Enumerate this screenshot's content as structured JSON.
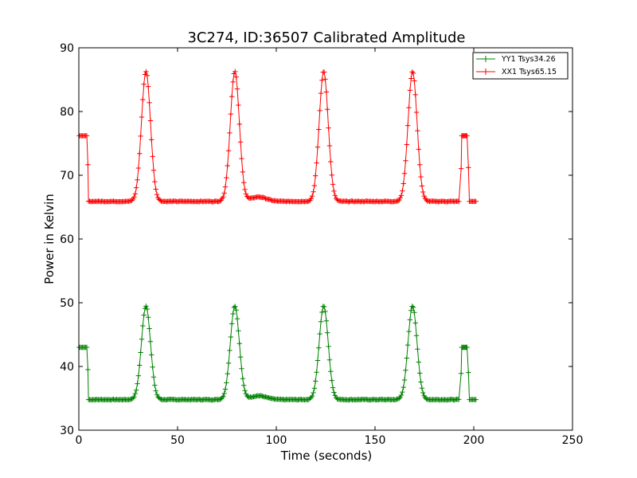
{
  "chart_data": {
    "type": "line",
    "title": "3C274, ID:36507 Calibrated Amplitude",
    "xlabel": "Time (seconds)",
    "ylabel": "Power in Kelvin",
    "xlim": [
      0,
      250
    ],
    "ylim": [
      30,
      90
    ],
    "xticks": [
      0,
      50,
      100,
      150,
      200,
      250
    ],
    "yticks": [
      30,
      40,
      50,
      60,
      70,
      80,
      90
    ],
    "legend_position": "top-right",
    "marker": "+",
    "series": [
      {
        "name": "YY1 Tsys34.26",
        "color": "#008000",
        "baseline": 34.8,
        "start_level": 43.0,
        "end_level": 43.0,
        "peaks": [
          {
            "x": 34,
            "y": 49.5
          },
          {
            "x": 79,
            "y": 49.5
          },
          {
            "x": 124,
            "y": 49.5
          },
          {
            "x": 169,
            "y": 49.5
          }
        ],
        "bump": {
          "x": 91,
          "y": 35.4
        }
      },
      {
        "name": "XX1 Tsys65.15",
        "color": "#ff0000",
        "baseline": 65.9,
        "start_level": 76.2,
        "end_level": 76.2,
        "peaks": [
          {
            "x": 34,
            "y": 86.3
          },
          {
            "x": 79,
            "y": 86.3
          },
          {
            "x": 124,
            "y": 86.3
          },
          {
            "x": 169,
            "y": 86.3
          }
        ],
        "bump": {
          "x": 91,
          "y": 66.6
        }
      }
    ]
  }
}
